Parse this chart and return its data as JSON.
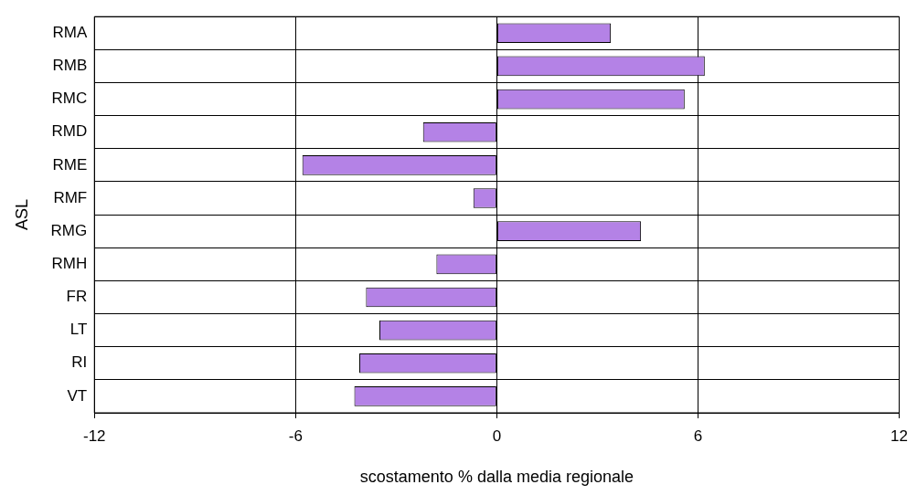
{
  "chart_data": {
    "type": "bar",
    "orientation": "horizontal",
    "xlabel": "scostamento % dalla media regionale",
    "ylabel": "ASL",
    "categories": [
      "RMA",
      "RMB",
      "RMC",
      "RMD",
      "RME",
      "RMF",
      "RMG",
      "RMH",
      "FR",
      "LT",
      "RI",
      "VT"
    ],
    "values": [
      3.4,
      6.2,
      5.6,
      -2.2,
      -5.8,
      -0.7,
      4.3,
      -1.8,
      -3.9,
      -3.5,
      -4.1,
      -4.25
    ],
    "color": "#b482e6",
    "xlim": [
      -12,
      12
    ],
    "xticks": [
      -12,
      -6,
      0,
      6,
      12
    ],
    "grid": true,
    "legend": false
  }
}
